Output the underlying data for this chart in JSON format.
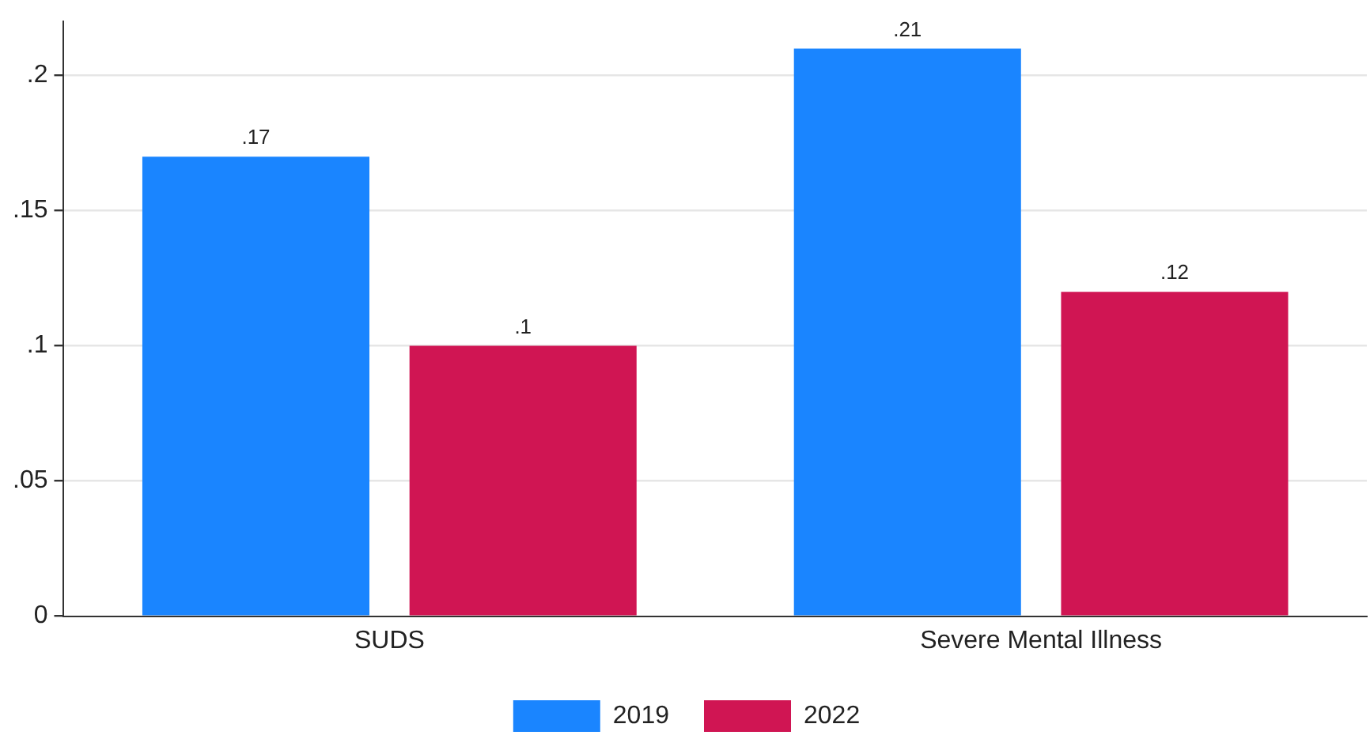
{
  "chart_data": {
    "type": "bar",
    "categories": [
      "SUDS",
      "Severe Mental Illness"
    ],
    "series": [
      {
        "name": "2019",
        "color": "#1a85ff",
        "values": [
          0.17,
          0.21
        ],
        "value_labels": [
          ".17",
          ".21"
        ]
      },
      {
        "name": "2022",
        "color": "#d01553",
        "values": [
          0.1,
          0.12
        ],
        "value_labels": [
          ".1",
          ".12"
        ]
      }
    ],
    "ylim": [
      0,
      0.22
    ],
    "yticks": [
      {
        "value": 0,
        "label": "0"
      },
      {
        "value": 0.05,
        "label": ".05"
      },
      {
        "value": 0.1,
        "label": ".1"
      },
      {
        "value": 0.15,
        "label": ".15"
      },
      {
        "value": 0.2,
        "label": ".2"
      }
    ],
    "grid": "y",
    "legend": "bottom"
  }
}
